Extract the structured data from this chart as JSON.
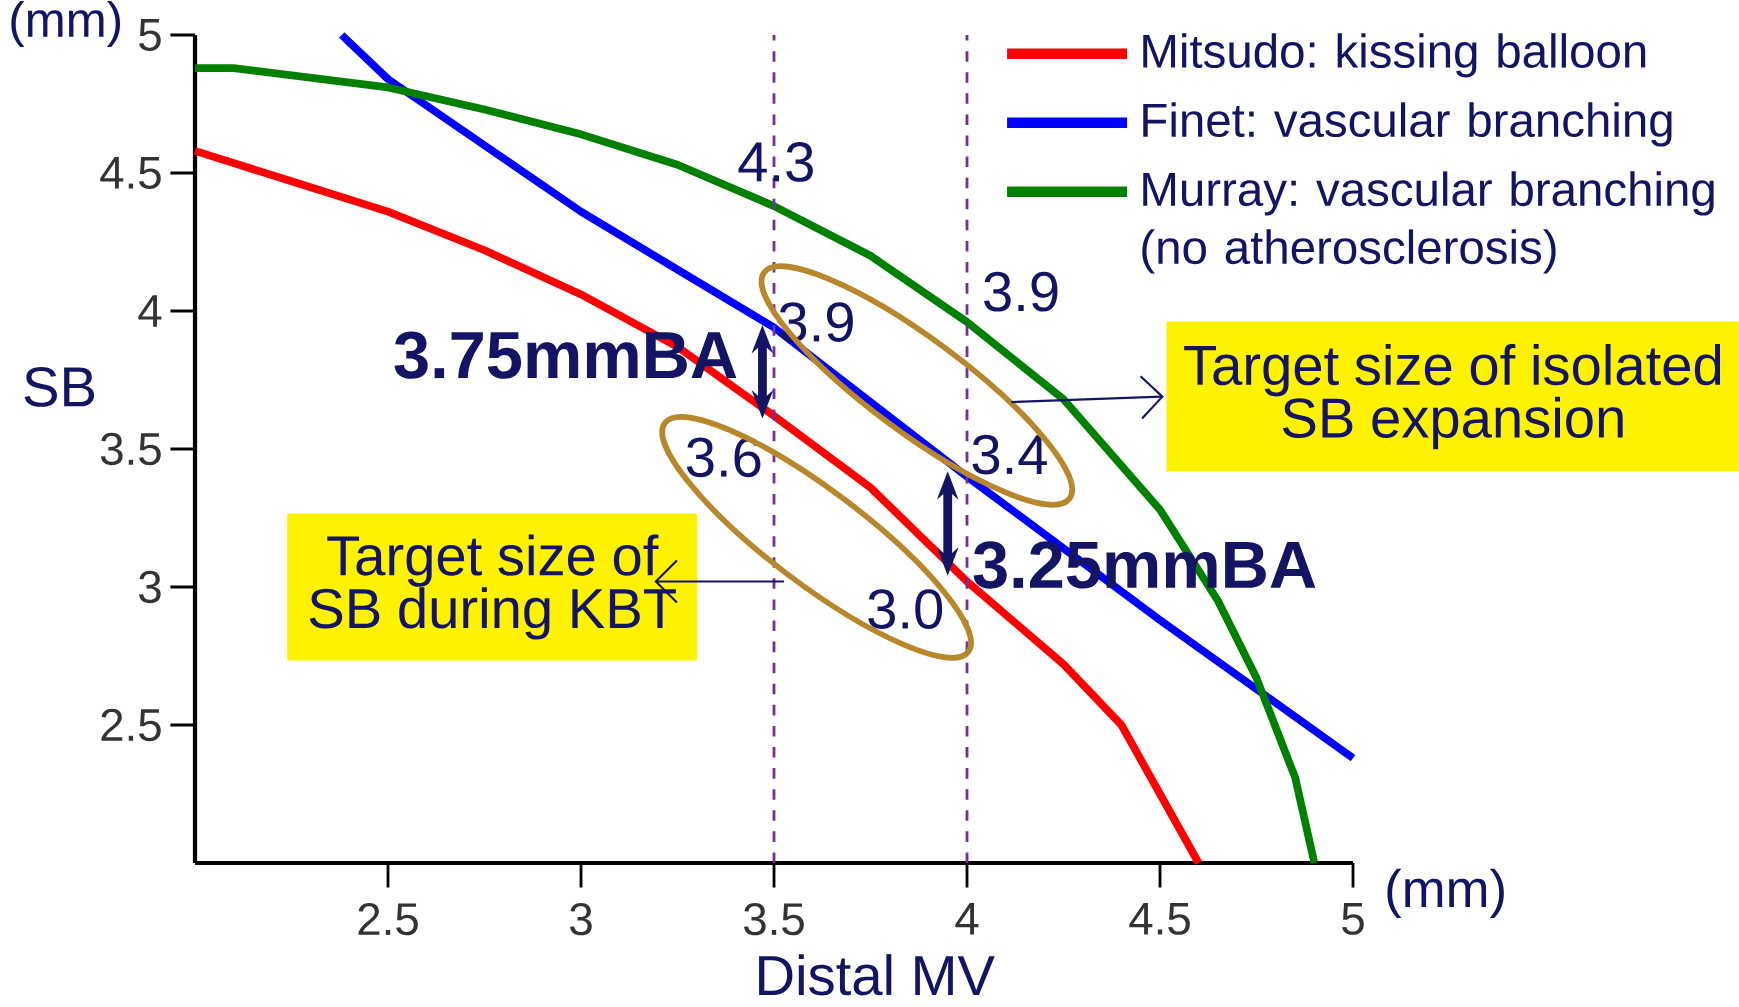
{
  "chart_data": {
    "type": "line",
    "xlabel": "Distal MV",
    "ylabel": "SB",
    "xlim": [
      2,
      5
    ],
    "ylim": [
      2,
      5
    ],
    "xticks": [
      2.5,
      3,
      3.5,
      4,
      4.5,
      5
    ],
    "yticks": [
      2.5,
      3,
      3.5,
      4,
      4.5,
      5
    ],
    "grid": false,
    "legend": "top right",
    "line_style": "solid",
    "series": [
      {
        "name": "Mitsudo: kissing balloon",
        "color": "#ff0000",
        "x": [
          2,
          2.25,
          2.5,
          2.75,
          3,
          3.25,
          3.5,
          3.75,
          4,
          4.25,
          4.4,
          4.5,
          4.6
        ],
        "values": [
          4.58,
          4.47,
          4.36,
          4.22,
          4.06,
          3.87,
          3.62,
          3.36,
          3.02,
          2.72,
          2.5,
          2.25,
          2.0
        ]
      },
      {
        "name": "Finet: vascular branching",
        "color": "#0000ff",
        "x": [
          2.38,
          2.5,
          2.75,
          3,
          3.25,
          3.5,
          3.75,
          4,
          4.25,
          4.5,
          4.75,
          5
        ],
        "values": [
          5.0,
          4.84,
          4.6,
          4.36,
          4.15,
          3.94,
          3.67,
          3.4,
          3.14,
          2.88,
          2.63,
          2.38
        ]
      },
      {
        "name": "Murray: vascular branching (no atherosclerosis)",
        "color": "#008000",
        "x": [
          2,
          2.1,
          2.5,
          2.75,
          3,
          3.25,
          3.5,
          3.75,
          4,
          4.25,
          4.5,
          4.65,
          4.75,
          4.85,
          4.9
        ],
        "values": [
          4.88,
          4.88,
          4.81,
          4.73,
          4.64,
          4.53,
          4.38,
          4.2,
          3.96,
          3.68,
          3.28,
          2.95,
          2.67,
          2.31,
          2.0
        ]
      }
    ],
    "ref_lines": [
      {
        "axis": "x",
        "value": 3.5,
        "color": "#7030a0",
        "line_style": "dashed"
      },
      {
        "axis": "x",
        "value": 4,
        "color": "#7030a0",
        "line_style": "dashed"
      }
    ],
    "annotations": [
      "(mm)",
      "(mm)",
      "3.75mmBA",
      "3.25mmBA",
      "Target size of isolated SB expansion",
      "Target size of SB during KBT",
      "4.3",
      "3.9",
      "3.9",
      "3.4",
      "3.6",
      "3.0"
    ]
  }
}
